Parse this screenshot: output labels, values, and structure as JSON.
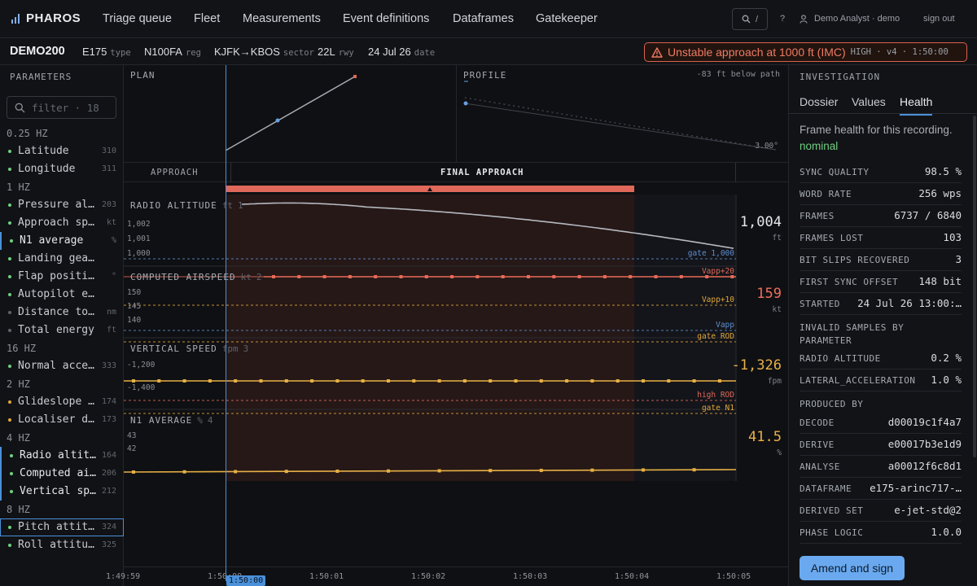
{
  "nav": {
    "brand": "PHAROS",
    "items": [
      "Triage queue",
      "Fleet",
      "Measurements",
      "Event definitions",
      "Dataframes",
      "Gatekeeper"
    ],
    "search_shortcut": "/",
    "help": "?",
    "user": "Demo Analyst · demo",
    "signout": "sign out"
  },
  "recording": {
    "id": "DEMO200",
    "type": {
      "value": "E175",
      "unit": "type"
    },
    "reg": {
      "value": "N100FA",
      "unit": "reg"
    },
    "sector": {
      "value": "KJFK→KBOS",
      "unit": "sector"
    },
    "rwy": {
      "value": "22L",
      "unit": "rwy"
    },
    "date": {
      "value": "24 Jul 26",
      "unit": "date"
    },
    "alert": {
      "title": "Unstable approach at 1000 ft (IMC)",
      "meta": "HIGH · v4 · 1:50:00",
      "color": "#d9604c"
    }
  },
  "sidebar": {
    "title": "PARAMETERS",
    "filter_placeholder": "filter · 18",
    "groups": [
      {
        "rate": "0.25 HZ",
        "params": [
          {
            "name": "Latitude",
            "count": "310",
            "state": "ok"
          },
          {
            "name": "Longitude",
            "count": "311",
            "state": "ok"
          }
        ]
      },
      {
        "rate": "1 HZ",
        "params": [
          {
            "name": "Pressure altitude",
            "count": "203",
            "state": "ok"
          },
          {
            "name": "Approach speed",
            "count": "kt",
            "state": "ok"
          },
          {
            "name": "N1 average",
            "count": "%",
            "state": "ok",
            "selected": true
          },
          {
            "name": "Landing gear down",
            "count": "",
            "state": "ok"
          },
          {
            "name": "Flap position",
            "count": "°",
            "state": "ok"
          },
          {
            "name": "Autopilot engaged",
            "count": "",
            "state": "ok"
          },
          {
            "name": "Distance to threshold",
            "count": "nm",
            "state": "idle"
          },
          {
            "name": "Total energy",
            "count": "ft",
            "state": "idle"
          }
        ]
      },
      {
        "rate": "16 HZ",
        "params": [
          {
            "name": "Normal acceleration",
            "count": "333",
            "state": "ok"
          }
        ]
      },
      {
        "rate": "2 HZ",
        "params": [
          {
            "name": "Glideslope deviation",
            "count": "174",
            "state": "warn"
          },
          {
            "name": "Localiser deviation",
            "count": "173",
            "state": "warn"
          }
        ]
      },
      {
        "rate": "4 HZ",
        "params": [
          {
            "name": "Radio altitude",
            "count": "164",
            "state": "ok",
            "selected": true
          },
          {
            "name": "Computed airspeed",
            "count": "206",
            "state": "ok",
            "selected": true
          },
          {
            "name": "Vertical speed",
            "count": "212",
            "state": "ok",
            "selected": true
          }
        ]
      },
      {
        "rate": "8 HZ",
        "params": [
          {
            "name": "Pitch attitude",
            "count": "324",
            "state": "ok",
            "focused": true
          },
          {
            "name": "Roll attitude",
            "count": "325",
            "state": "ok"
          }
        ]
      }
    ]
  },
  "plan": {
    "title": "PLAN"
  },
  "profile": {
    "title": "PROFILE",
    "note": "-83 ft below path",
    "gs_label": "3.00°"
  },
  "phases": {
    "left": "APPROACH",
    "right": "FINAL APPROACH"
  },
  "charts": [
    {
      "title": "RADIO ALTITUDE",
      "unit": "ft",
      "index": "1",
      "yticks": [
        "1,002",
        "1,001",
        "1,000"
      ],
      "refs": [
        {
          "label": "gate 1,000",
          "color": "#5c8fd0"
        }
      ],
      "readout": "1,004",
      "readout_unit": "ft",
      "readout_color": "#e6e8eb",
      "series_color": "#b5b9c0"
    },
    {
      "title": "COMPUTED AIRSPEED",
      "unit": "kt",
      "index": "2",
      "yticks": [
        "150",
        "145",
        "140"
      ],
      "refs": [
        {
          "label": "Vapp+20",
          "color": "#e0685a"
        },
        {
          "label": "Vapp+10",
          "color": "#e0a63a"
        },
        {
          "label": "Vapp",
          "color": "#5c8fd0"
        }
      ],
      "readout": "159",
      "readout_unit": "kt",
      "readout_color": "#ef6f5c",
      "series_color": "#e86a58"
    },
    {
      "title": "VERTICAL SPEED",
      "unit": "fpm",
      "index": "3",
      "yticks": [
        "-1,200",
        "-1,400"
      ],
      "refs": [
        {
          "label": "gate ROD",
          "color": "#e0a63a"
        },
        {
          "label": "high ROD",
          "color": "#e0685a"
        }
      ],
      "readout": "-1,326",
      "readout_unit": "fpm",
      "readout_color": "#e8b04a",
      "series_color": "#e6b045"
    },
    {
      "title": "N1 AVERAGE",
      "unit": "%",
      "index": "4",
      "yticks": [
        "43",
        "42"
      ],
      "refs": [
        {
          "label": "gate N1",
          "color": "#e0a63a"
        }
      ],
      "readout": "41.5",
      "readout_unit": "%",
      "readout_color": "#e8b04a",
      "series_color": "#e6b045"
    }
  ],
  "timeaxis": {
    "ticks": [
      "1:49:59",
      "1:50:00",
      "1:50:01",
      "1:50:02",
      "1:50:03",
      "1:50:04",
      "1:50:05"
    ],
    "cursor": "1:50:00"
  },
  "investigation": {
    "title": "INVESTIGATION",
    "tabs": [
      "Dossier",
      "Values",
      "Health"
    ],
    "active_tab": "Health",
    "health_text": "Frame health for this recording.",
    "health_status": "nominal",
    "stats": [
      {
        "k": "SYNC QUALITY",
        "v": "98.5 %"
      },
      {
        "k": "WORD RATE",
        "v": "256 wps"
      },
      {
        "k": "FRAMES",
        "v": "6737 / 6840"
      },
      {
        "k": "FRAMES LOST",
        "v": "103"
      },
      {
        "k": "BIT SLIPS RECOVERED",
        "v": "3"
      },
      {
        "k": "FIRST SYNC OFFSET",
        "v": "148 bit"
      },
      {
        "k": "STARTED",
        "v": "24 Jul 26 13:00:…"
      }
    ],
    "invalid_title": "INVALID SAMPLES BY PARAMETER",
    "invalid": [
      {
        "k": "RADIO ALTITUDE",
        "v": "0.2 %"
      },
      {
        "k": "LATERAL_ACCELERATION",
        "v": "1.0 %"
      }
    ],
    "produced_title": "PRODUCED BY",
    "produced": [
      {
        "k": "DECODE",
        "v": "d00019c1f4a7"
      },
      {
        "k": "DERIVE",
        "v": "e00017b3e1d9"
      },
      {
        "k": "ANALYSE",
        "v": "a00012f6c8d1"
      },
      {
        "k": "DATAFRAME",
        "v": "e175-arinc717-…"
      },
      {
        "k": "DERIVED SET",
        "v": "e-jet-std@2"
      },
      {
        "k": "PHASE LOGIC",
        "v": "1.0.0"
      }
    ],
    "action": "Amend and sign"
  }
}
